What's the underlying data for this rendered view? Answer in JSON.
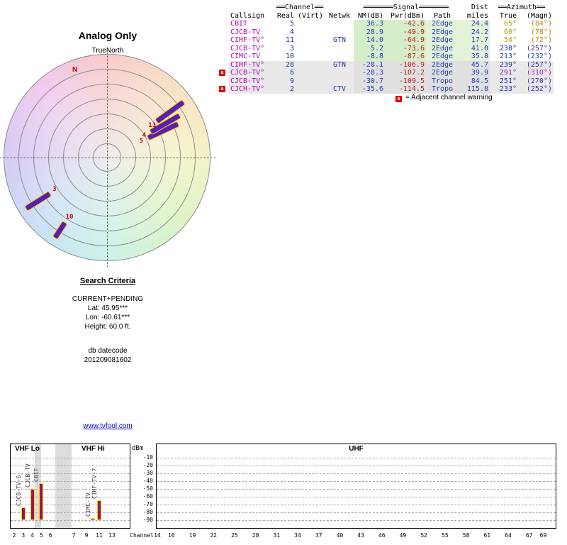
{
  "report": {
    "title": "Analog Only",
    "true_north_label": "TrueNorth",
    "magnetic_north_label": "N",
    "website": "www.tvfool.com"
  },
  "search_criteria": {
    "heading": "Search Criteria",
    "mode": "CURRENT+PENDING",
    "lat": "Lat: 45.95***",
    "lon": "Lon: -60.61***",
    "height": "Height: 60.0 ft.",
    "db_label": "db datecode",
    "db_datecode": "201209081602"
  },
  "table": {
    "group_headers": {
      "channel": "══Channel══",
      "signal": "═══════Signal═══════",
      "dist": "Dist",
      "azimuth": "══Azimuth══"
    },
    "columns": {
      "callsign": "Callsign",
      "real": "Real",
      "virt": "(Virt)",
      "netwk": "Netwk",
      "nm": "NM(dB)",
      "pwr": "Pwr(dBm)",
      "path": "Path",
      "miles": "miles",
      "true": "True",
      "magn": "(Magn)"
    },
    "legend_badge": "a",
    "legend_text": "= Adjacent channel warning",
    "rows": [
      {
        "callsign": "CBIT",
        "real": "5",
        "virt": "",
        "netwk": "",
        "nm": "36.3",
        "pwr": "-42.6",
        "path": "2Edge",
        "miles": "24.4",
        "true": "65°",
        "magn": "(84°)",
        "true_color": "#a8a000",
        "magn_color": "#cc8400",
        "category": "green",
        "warn": false
      },
      {
        "callsign": "CJCB-TV",
        "real": "4",
        "virt": "",
        "netwk": "",
        "nm": "28.9",
        "pwr": "-49.9",
        "path": "2Edge",
        "miles": "24.2",
        "true": "60°",
        "magn": "(78°)",
        "true_color": "#a8a000",
        "magn_color": "#cc8400",
        "category": "green",
        "warn": false
      },
      {
        "callsign": "CIHF-TV°",
        "real": "11",
        "virt": "",
        "netwk": "GTN",
        "nm": "14.0",
        "pwr": "-64.9",
        "path": "2Edge",
        "miles": "17.7",
        "true": "54°",
        "magn": "(72°)",
        "true_color": "#c89000",
        "magn_color": "#cc8400",
        "category": "green",
        "warn": false
      },
      {
        "callsign": "CJCB-TV°",
        "real": "3",
        "virt": "",
        "netwk": "",
        "nm": "5.2",
        "pwr": "-73.6",
        "path": "2Edge",
        "miles": "41.0",
        "true": "238°",
        "magn": "(257°)",
        "true_color": "#2030a8",
        "magn_color": "#4028b8",
        "category": "green",
        "warn": false
      },
      {
        "callsign": "CIMC-TV",
        "real": "10",
        "virt": "",
        "netwk": "",
        "nm": "-8.8",
        "pwr": "-87.6",
        "path": "2Edge",
        "miles": "35.8",
        "true": "213°",
        "magn": "(232°)",
        "true_color": "#2040a8",
        "magn_color": "#2048b0",
        "category": "green",
        "warn": false
      },
      {
        "callsign": "CIHF-TV°",
        "real": "28",
        "virt": "",
        "netwk": "GTN",
        "nm": "-28.1",
        "pwr": "-106.9",
        "path": "2Edge",
        "miles": "45.7",
        "true": "239°",
        "magn": "(257°)",
        "true_color": "#2030a8",
        "magn_color": "#4028b8",
        "category": "gray",
        "warn": false
      },
      {
        "callsign": "CJCB-TV°",
        "real": "6",
        "virt": "",
        "netwk": "",
        "nm": "-28.3",
        "pwr": "-107.2",
        "path": "2Edge",
        "miles": "39.9",
        "true": "291°",
        "magn": "(310°)",
        "true_color": "#8820b8",
        "magn_color": "#b028b8",
        "category": "gray",
        "warn": true
      },
      {
        "callsign": "CJCB-TV°",
        "real": "9",
        "virt": "",
        "netwk": "",
        "nm": "-30.7",
        "pwr": "-109.5",
        "path": "Tropo",
        "miles": "84.5",
        "true": "251°",
        "magn": "(270°)",
        "true_color": "#2030a8",
        "magn_color": "#5030c0",
        "category": "gray",
        "warn": false
      },
      {
        "callsign": "CJCH-TV°",
        "real": "2",
        "virt": "",
        "netwk": "CTV",
        "nm": "-35.6",
        "pwr": "-114.5",
        "path": "Tropo",
        "miles": "115.8",
        "true": "233°",
        "magn": "(252°)",
        "true_color": "#2030a8",
        "magn_color": "#4028b8",
        "category": "gray",
        "warn": true
      }
    ]
  },
  "radar_signals": [
    {
      "channel": "5",
      "callsign": "CBIT",
      "azimuth_true": 65,
      "nm_db": 36.3
    },
    {
      "channel": "4",
      "callsign": "CJCB-TV",
      "azimuth_true": 60,
      "nm_db": 28.9
    },
    {
      "channel": "11",
      "callsign": "CIHF-TV",
      "azimuth_true": 54,
      "nm_db": 14.0
    },
    {
      "channel": "3",
      "callsign": "CJCB-TV",
      "azimuth_true": 238,
      "nm_db": 5.2
    },
    {
      "channel": "10",
      "callsign": "CIMC-TV",
      "azimuth_true": 213,
      "nm_db": -8.8
    }
  ],
  "chart_data": {
    "type": "bar",
    "title": "",
    "ylabel": "dBm",
    "xlabel": "Channel",
    "ylim": [
      -90,
      -10
    ],
    "yticks": [
      -10,
      -20,
      -30,
      -40,
      -50,
      -60,
      -70,
      -80,
      -90
    ],
    "grid": true,
    "legend_position": "none",
    "sections": [
      {
        "label": "VHF Lo",
        "ticks": [
          2,
          3,
          4,
          5,
          6
        ]
      },
      {
        "label": "VHF Hi",
        "ticks": [
          7,
          9,
          11,
          13
        ]
      },
      {
        "label": "UHF",
        "ticks": [
          14,
          16,
          19,
          22,
          25,
          28,
          31,
          34,
          37,
          40,
          43,
          46,
          49,
          52,
          55,
          58,
          61,
          64,
          67,
          69
        ]
      }
    ],
    "bars": [
      {
        "channel": 2,
        "callsign": "CJCH-TV",
        "power_dbm": -114.5
      },
      {
        "channel": 3,
        "callsign": "CJCB-TV-6",
        "power_dbm": -73.6
      },
      {
        "channel": 4,
        "callsign": "CJCB-TV",
        "power_dbm": -49.9
      },
      {
        "channel": 5,
        "callsign": "CBIT",
        "power_dbm": -42.6
      },
      {
        "channel": 6,
        "callsign": "CJCB-TV",
        "power_dbm": -107.2
      },
      {
        "channel": 9,
        "callsign": "CJCB-TV",
        "power_dbm": -109.5
      },
      {
        "channel": 10,
        "callsign": "CIMC-TV",
        "power_dbm": -87.6
      },
      {
        "channel": 11,
        "callsign": "CIHF-TV-7",
        "power_dbm": -64.9
      },
      {
        "channel": 28,
        "callsign": "CIHF-TV",
        "power_dbm": -106.9
      }
    ]
  },
  "colors": {
    "callsign": "#b800b8",
    "channel_num": "#2030a0",
    "netwk": "#2030a0",
    "nm": "#2040c0",
    "pwr": "#c02020",
    "path": "#2040c0",
    "miles": "#2040c0",
    "warn_badge_bg": "#e00000",
    "channel_label": "#d00000",
    "radar_bar_fill": "#5a1fb0",
    "radar_bar_border": "#ffd600",
    "chart_bar_fill": "#9c1458",
    "chart_bar_border": "#ffd600",
    "chart_label_color": "#503050",
    "link": "#0000cc"
  }
}
